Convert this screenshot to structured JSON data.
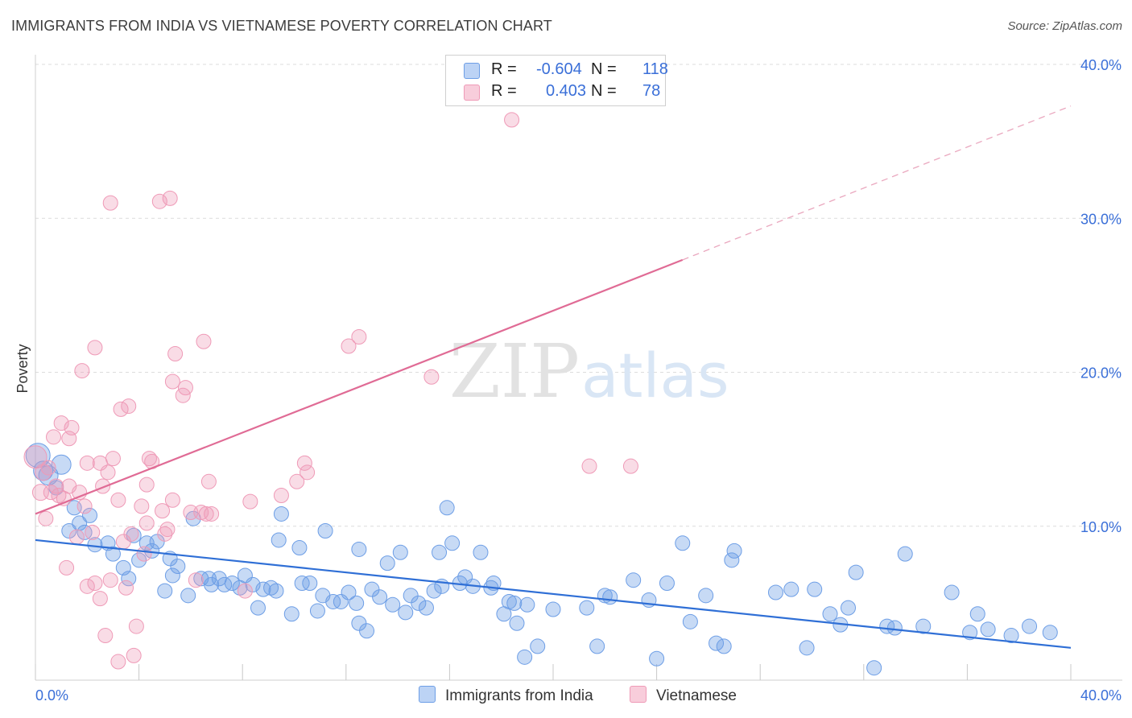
{
  "title": "IMMIGRANTS FROM INDIA VS VIETNAMESE POVERTY CORRELATION CHART",
  "source": "Source: ZipAtlas.com",
  "watermark": {
    "zip": "ZIP",
    "atlas": "atlas"
  },
  "legend": [
    {
      "r_label": "R =",
      "r_value": "-0.604",
      "n_label": "N =",
      "n_value": "118",
      "color": "#6d9ee6"
    },
    {
      "r_label": "R =",
      "r_value": "0.403",
      "n_label": "N =",
      "n_value": "78",
      "color": "#ef9ab7"
    }
  ],
  "bottom_legend": [
    "Immigrants from India",
    "Vietnamese"
  ],
  "chart_data": {
    "type": "scatter",
    "title": "IMMIGRANTS FROM INDIA VS VIETNAMESE POVERTY CORRELATION CHART",
    "xlabel": "",
    "ylabel": "Poverty",
    "xlim": [
      0,
      40
    ],
    "ylim": [
      0,
      40
    ],
    "x_tick_labels": [
      "0.0%",
      "40.0%"
    ],
    "y_ticks": [
      10,
      20,
      30,
      40
    ],
    "y_tick_labels": [
      "10.0%",
      "20.0%",
      "30.0%",
      "40.0%"
    ],
    "grid": "horizontal dashed",
    "legend_position": "top-center",
    "series": [
      {
        "name": "Immigrants from India",
        "color": "#6d9ee6",
        "trend": {
          "x0": 0,
          "y0": 9.1,
          "x1": 40,
          "y1": 2.1,
          "style": "solid"
        },
        "points": [
          [
            0.1,
            14.6
          ],
          [
            0.3,
            13.6
          ],
          [
            0.5,
            13.3
          ],
          [
            1.0,
            14.0
          ],
          [
            0.8,
            12.5
          ],
          [
            1.5,
            11.2
          ],
          [
            1.7,
            10.2
          ],
          [
            2.1,
            10.7
          ],
          [
            1.3,
            9.7
          ],
          [
            1.9,
            9.6
          ],
          [
            2.3,
            8.8
          ],
          [
            2.8,
            8.9
          ],
          [
            3.0,
            8.2
          ],
          [
            3.4,
            7.3
          ],
          [
            3.6,
            6.6
          ],
          [
            3.8,
            9.4
          ],
          [
            4.0,
            7.8
          ],
          [
            4.3,
            8.9
          ],
          [
            4.5,
            8.4
          ],
          [
            4.7,
            9.0
          ],
          [
            5.0,
            5.8
          ],
          [
            5.2,
            7.9
          ],
          [
            5.3,
            6.8
          ],
          [
            5.5,
            7.4
          ],
          [
            5.9,
            5.5
          ],
          [
            6.1,
            10.5
          ],
          [
            6.4,
            6.6
          ],
          [
            6.7,
            6.6
          ],
          [
            6.8,
            6.2
          ],
          [
            7.1,
            6.6
          ],
          [
            7.3,
            6.2
          ],
          [
            7.6,
            6.3
          ],
          [
            7.9,
            6.0
          ],
          [
            8.1,
            6.8
          ],
          [
            8.4,
            6.2
          ],
          [
            8.6,
            4.7
          ],
          [
            8.8,
            5.9
          ],
          [
            9.1,
            6.0
          ],
          [
            9.3,
            5.8
          ],
          [
            9.4,
            9.1
          ],
          [
            9.5,
            10.8
          ],
          [
            9.9,
            4.3
          ],
          [
            10.2,
            8.6
          ],
          [
            10.3,
            6.3
          ],
          [
            10.6,
            6.3
          ],
          [
            10.9,
            4.5
          ],
          [
            11.1,
            5.5
          ],
          [
            11.2,
            9.7
          ],
          [
            11.5,
            5.1
          ],
          [
            11.8,
            5.1
          ],
          [
            12.1,
            5.7
          ],
          [
            12.4,
            5.0
          ],
          [
            12.5,
            3.7
          ],
          [
            12.5,
            8.5
          ],
          [
            12.8,
            3.2
          ],
          [
            13.0,
            5.9
          ],
          [
            13.3,
            5.4
          ],
          [
            13.6,
            7.6
          ],
          [
            13.8,
            4.9
          ],
          [
            14.1,
            8.3
          ],
          [
            14.3,
            4.4
          ],
          [
            14.5,
            5.5
          ],
          [
            14.8,
            5.0
          ],
          [
            15.1,
            4.7
          ],
          [
            15.4,
            5.8
          ],
          [
            15.6,
            8.3
          ],
          [
            15.7,
            6.1
          ],
          [
            15.9,
            11.2
          ],
          [
            16.1,
            8.9
          ],
          [
            16.4,
            6.3
          ],
          [
            16.6,
            6.7
          ],
          [
            16.9,
            6.1
          ],
          [
            17.2,
            8.3
          ],
          [
            17.6,
            6.0
          ],
          [
            17.7,
            6.3
          ],
          [
            18.1,
            4.3
          ],
          [
            18.3,
            5.1
          ],
          [
            18.5,
            5.0
          ],
          [
            18.6,
            3.7
          ],
          [
            19.0,
            4.9
          ],
          [
            18.9,
            1.5
          ],
          [
            19.4,
            2.2
          ],
          [
            20.0,
            4.6
          ],
          [
            21.3,
            4.7
          ],
          [
            21.7,
            2.2
          ],
          [
            22.0,
            5.5
          ],
          [
            22.2,
            5.4
          ],
          [
            23.1,
            6.5
          ],
          [
            23.7,
            5.2
          ],
          [
            24.0,
            1.4
          ],
          [
            24.4,
            6.3
          ],
          [
            25.0,
            8.9
          ],
          [
            25.3,
            3.8
          ],
          [
            25.9,
            5.5
          ],
          [
            26.3,
            2.4
          ],
          [
            26.6,
            2.2
          ],
          [
            26.9,
            7.8
          ],
          [
            27.0,
            8.4
          ],
          [
            28.6,
            5.7
          ],
          [
            29.2,
            5.9
          ],
          [
            29.8,
            2.1
          ],
          [
            30.1,
            5.9
          ],
          [
            30.7,
            4.3
          ],
          [
            31.1,
            3.6
          ],
          [
            31.4,
            4.7
          ],
          [
            31.7,
            7.0
          ],
          [
            32.4,
            0.8
          ],
          [
            32.9,
            3.5
          ],
          [
            33.2,
            3.4
          ],
          [
            33.6,
            8.2
          ],
          [
            34.3,
            3.5
          ],
          [
            35.4,
            5.7
          ],
          [
            36.1,
            3.1
          ],
          [
            36.4,
            4.3
          ],
          [
            36.8,
            3.3
          ],
          [
            37.7,
            2.9
          ],
          [
            38.4,
            3.5
          ],
          [
            39.2,
            3.1
          ]
        ]
      },
      {
        "name": "Vietnamese",
        "color": "#ef9ab7",
        "trend": {
          "x0": 0,
          "y0": 10.8,
          "x1": 25,
          "y1": 27.3,
          "x2": 40,
          "y2": 37.3,
          "style": "solid then dashed"
        },
        "points": [
          [
            0.0,
            14.5
          ],
          [
            0.2,
            12.2
          ],
          [
            0.3,
            13.5
          ],
          [
            0.4,
            10.5
          ],
          [
            0.5,
            13.8
          ],
          [
            0.6,
            12.2
          ],
          [
            0.7,
            15.8
          ],
          [
            0.8,
            12.6
          ],
          [
            0.9,
            12.0
          ],
          [
            1.0,
            16.7
          ],
          [
            1.1,
            11.8
          ],
          [
            1.3,
            12.6
          ],
          [
            1.3,
            15.7
          ],
          [
            1.4,
            16.4
          ],
          [
            1.2,
            7.3
          ],
          [
            1.6,
            9.3
          ],
          [
            1.7,
            12.2
          ],
          [
            1.8,
            20.1
          ],
          [
            1.9,
            11.3
          ],
          [
            2.0,
            14.1
          ],
          [
            2.0,
            6.1
          ],
          [
            2.2,
            9.6
          ],
          [
            2.3,
            6.3
          ],
          [
            2.3,
            21.6
          ],
          [
            2.5,
            14.1
          ],
          [
            2.5,
            5.3
          ],
          [
            2.6,
            12.6
          ],
          [
            2.7,
            2.9
          ],
          [
            2.8,
            13.5
          ],
          [
            2.9,
            6.5
          ],
          [
            2.9,
            31.0
          ],
          [
            3.0,
            14.4
          ],
          [
            3.2,
            1.2
          ],
          [
            3.2,
            11.7
          ],
          [
            3.3,
            17.6
          ],
          [
            3.4,
            9.0
          ],
          [
            3.5,
            6.0
          ],
          [
            3.6,
            17.8
          ],
          [
            3.7,
            9.5
          ],
          [
            3.8,
            1.6
          ],
          [
            3.9,
            3.5
          ],
          [
            4.1,
            11.3
          ],
          [
            4.2,
            8.2
          ],
          [
            4.3,
            10.2
          ],
          [
            4.3,
            12.7
          ],
          [
            4.4,
            14.4
          ],
          [
            4.5,
            14.2
          ],
          [
            4.8,
            31.1
          ],
          [
            4.9,
            11.0
          ],
          [
            5.0,
            9.5
          ],
          [
            5.1,
            9.8
          ],
          [
            5.2,
            31.3
          ],
          [
            5.3,
            19.4
          ],
          [
            5.3,
            11.7
          ],
          [
            5.4,
            21.2
          ],
          [
            5.7,
            18.5
          ],
          [
            5.8,
            19.0
          ],
          [
            6.0,
            10.9
          ],
          [
            6.2,
            6.5
          ],
          [
            6.4,
            10.9
          ],
          [
            6.5,
            22.0
          ],
          [
            6.6,
            10.8
          ],
          [
            6.7,
            12.9
          ],
          [
            6.8,
            10.8
          ],
          [
            8.3,
            11.6
          ],
          [
            8.1,
            5.8
          ],
          [
            9.5,
            12.0
          ],
          [
            10.1,
            12.9
          ],
          [
            10.4,
            14.1
          ],
          [
            10.5,
            13.5
          ],
          [
            12.1,
            21.7
          ],
          [
            12.5,
            22.3
          ],
          [
            15.3,
            19.7
          ],
          [
            17.7,
            37.9
          ],
          [
            18.0,
            38.5
          ],
          [
            18.4,
            36.4
          ],
          [
            21.4,
            13.9
          ],
          [
            23.0,
            13.9
          ]
        ]
      }
    ]
  }
}
